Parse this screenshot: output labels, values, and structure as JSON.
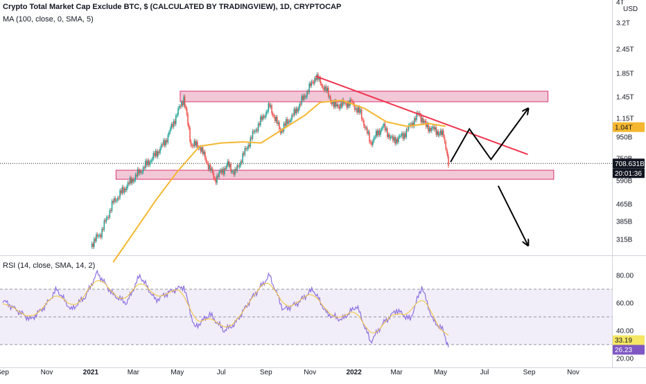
{
  "header": {
    "title": "Crypto Total Market Cap Exclude BTC, $ (CALCULATED BY TRADINGVIEW), 1D, CRYPTOCAP",
    "ma_label": "MA (100, close, 0, SMA, 5)",
    "rsi_label": "RSI (14, close, SMA, 14, 2)"
  },
  "chart_data": [
    {
      "type": "line",
      "name": "price",
      "scale": "log",
      "currency": "USD",
      "y_ticks": [
        "4T",
        "3.2T",
        "2.45T",
        "1.85T",
        "1.45T",
        "1.15T",
        "950B",
        "750B",
        "590B",
        "465B",
        "385B",
        "315B"
      ],
      "x_ticks": [
        "Sep",
        "Nov",
        "2021",
        "Mar",
        "May",
        "Jul",
        "Sep",
        "Nov",
        "2022",
        "Mar",
        "May",
        "Jul",
        "Sep",
        "Nov"
      ],
      "bold_x_ticks": [
        "2021",
        "2022"
      ],
      "x": [
        "2021-01-01",
        "2021-01-15",
        "2021-02-01",
        "2021-02-20",
        "2021-03-10",
        "2021-04-01",
        "2021-04-15",
        "2021-05-10",
        "2021-05-20",
        "2021-06-01",
        "2021-06-22",
        "2021-07-10",
        "2021-07-20",
        "2021-08-15",
        "2021-09-06",
        "2021-09-21",
        "2021-10-10",
        "2021-10-25",
        "2021-11-09",
        "2021-11-25",
        "2021-12-04",
        "2021-12-28",
        "2022-01-10",
        "2022-01-24",
        "2022-02-10",
        "2022-02-24",
        "2022-03-10",
        "2022-04-01",
        "2022-04-11",
        "2022-04-25",
        "2022-05-05",
        "2022-05-10",
        "2022-05-12"
      ],
      "values": [
        300,
        340,
        470,
        560,
        650,
        780,
        900,
        1420,
        870,
        850,
        600,
        700,
        640,
        980,
        1300,
        1000,
        1200,
        1450,
        1780,
        1500,
        1300,
        1350,
        1200,
        880,
        1050,
        900,
        950,
        1200,
        1050,
        1000,
        950,
        800,
        690
      ],
      "last_value": "708.631B",
      "countdown": "20:01:36",
      "ma_value": "1.04T",
      "ma_series": {
        "name": "MA (100, close, 0, SMA, 5)",
        "x": [
          "2021-02-01",
          "2021-03-01",
          "2021-04-01",
          "2021-05-01",
          "2021-06-01",
          "2021-07-01",
          "2021-08-01",
          "2021-08-25",
          "2021-09-25",
          "2021-10-25",
          "2021-11-15",
          "2021-12-15",
          "2022-01-15",
          "2022-02-15",
          "2022-03-15",
          "2022-04-15",
          "2022-05-08"
        ],
        "values": [
          250,
          340,
          480,
          650,
          850,
          880,
          890,
          880,
          1020,
          1180,
          1350,
          1380,
          1270,
          1100,
          1050,
          1080,
          1050
        ]
      },
      "color_price_up": "#26a69a",
      "color_price_down": "#ef5350",
      "color_ma": "#f5b730",
      "annotations": {
        "resistance_zone": {
          "low": 1360,
          "high": 1520,
          "color": "#e89ab6"
        },
        "support_zone": {
          "low": 600,
          "high": 660,
          "color": "#e89ab6"
        },
        "trendline": {
          "from": {
            "x": "2021-11-09",
            "value": 1780
          },
          "to": {
            "x": "2022-08-30",
            "value": 780
          },
          "color": "#f0334d"
        },
        "projection_path": [
          {
            "x": "2022-05-15",
            "value": 720
          },
          {
            "x": "2022-06-10",
            "value": 1020
          },
          {
            "x": "2022-07-10",
            "value": 740
          },
          {
            "x": "2022-08-30",
            "value": 1260
          }
        ],
        "bearish_path": [
          {
            "x": "2022-07-20",
            "value": 560
          },
          {
            "x": "2022-08-30",
            "value": 300
          }
        ]
      }
    },
    {
      "type": "line",
      "name": "rsi",
      "ylim": [
        20,
        86
      ],
      "y_ticks": [
        "80.00",
        "60.00",
        "40.00",
        "20.00"
      ],
      "band": {
        "low": 30,
        "high": 70,
        "color": "#7e57c2"
      },
      "dashed_levels": [
        70,
        50,
        30
      ],
      "x": [
        "2020-09-01",
        "2020-09-20",
        "2020-10-10",
        "2020-10-30",
        "2020-11-15",
        "2020-12-05",
        "2020-12-25",
        "2021-01-10",
        "2021-02-01",
        "2021-02-20",
        "2021-03-10",
        "2021-04-01",
        "2021-04-20",
        "2021-05-10",
        "2021-05-25",
        "2021-06-15",
        "2021-07-05",
        "2021-07-20",
        "2021-08-10",
        "2021-09-06",
        "2021-09-25",
        "2021-10-15",
        "2021-11-05",
        "2021-11-25",
        "2021-12-15",
        "2022-01-05",
        "2022-01-24",
        "2022-02-10",
        "2022-03-01",
        "2022-03-20",
        "2022-04-05",
        "2022-04-20",
        "2022-05-05",
        "2022-05-12"
      ],
      "values": [
        62,
        55,
        48,
        58,
        70,
        55,
        65,
        82,
        66,
        60,
        80,
        62,
        68,
        72,
        42,
        52,
        40,
        45,
        62,
        80,
        55,
        60,
        70,
        52,
        48,
        58,
        32,
        45,
        55,
        48,
        72,
        48,
        40,
        28
      ],
      "rsi_value": "26.23",
      "ma_value": "33.19",
      "color_rsi": "#8c70e0",
      "color_rsi_ma": "#f0c850"
    }
  ],
  "price_badges": {
    "ma": {
      "text": "1.04T",
      "bg": "#f5b730",
      "fg": "#131722"
    },
    "last": {
      "text": "708.631B",
      "bg": "#131722",
      "fg": "#ffffff"
    },
    "countdown": {
      "text": "20:01:36",
      "bg": "#131722",
      "fg": "#ffffff"
    }
  },
  "rsi_badges": {
    "ma": {
      "text": "33.19",
      "bg": "#f5e663",
      "fg": "#131722"
    },
    "rsi": {
      "text": "26.23",
      "bg": "#7e57c2",
      "fg": "#ffffff"
    }
  },
  "currency_label": "USD"
}
